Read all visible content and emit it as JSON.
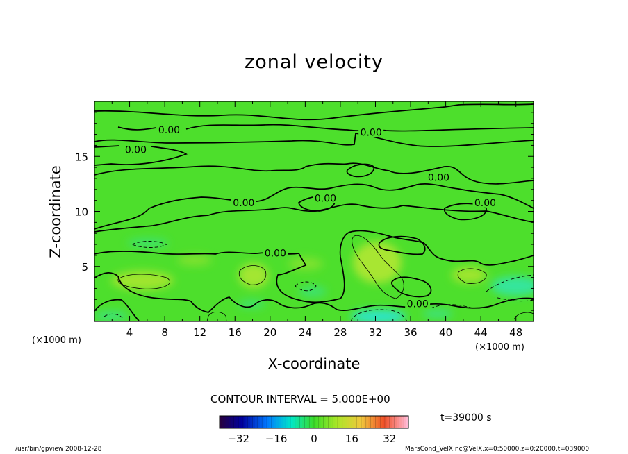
{
  "chart_data": {
    "type": "contour",
    "title": "zonal velocity",
    "xlabel": "X-coordinate",
    "ylabel": "Z-coordinate",
    "x_unit_left": "(×1000 m)",
    "x_unit_right": "(×1000 m)",
    "xlim": [
      0,
      50
    ],
    "ylim": [
      0,
      20
    ],
    "xticks": [
      4,
      8,
      12,
      16,
      20,
      24,
      28,
      32,
      36,
      40,
      44,
      48
    ],
    "yticks": [
      5,
      10,
      15
    ],
    "contour_interval_text": "CONTOUR INTERVAL = 5.000E+00",
    "contour_labels": [
      {
        "text": "0.00",
        "x": 8.5,
        "z": 17.4
      },
      {
        "text": "0.00",
        "x": 4.7,
        "z": 15.6
      },
      {
        "text": "0.00",
        "x": 31.5,
        "z": 17.2
      },
      {
        "text": "0.00",
        "x": 39.2,
        "z": 13.1
      },
      {
        "text": "0.00",
        "x": 44.5,
        "z": 10.8
      },
      {
        "text": "0.00",
        "x": 26.3,
        "z": 11.2
      },
      {
        "text": "0.00",
        "x": 17.0,
        "z": 10.8
      },
      {
        "text": "0.00",
        "x": 20.6,
        "z": 6.2
      },
      {
        "text": "0.00",
        "x": 36.8,
        "z": 1.6
      }
    ],
    "colorbar": {
      "ticks": [
        -32,
        -16,
        0,
        16,
        32
      ],
      "range": [
        -40,
        40
      ]
    },
    "time_text": "t=39000 s"
  },
  "footer": {
    "left": "/usr/bin/gpview  2008-12-28",
    "right": "MarsCond_VelX.nc@VelX,x=0:50000,z=0:20000,t=039000"
  },
  "colors": {
    "field_base": "#4ddf2c",
    "positive_patch": "#a6e630",
    "negative_patch": "#34e58c"
  }
}
